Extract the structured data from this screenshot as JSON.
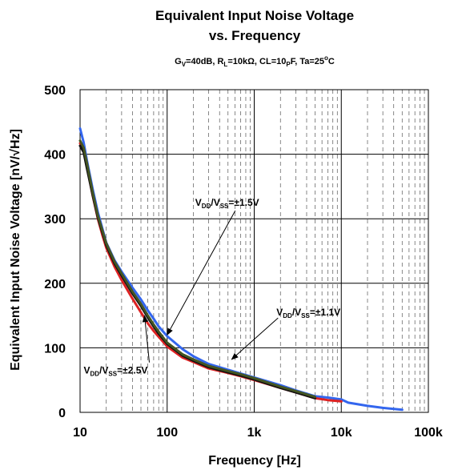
{
  "chart_data": {
    "type": "line",
    "title": [
      "Equivalent Input Noise Voltage",
      "vs. Frequency"
    ],
    "subtitle": {
      "gain_prefix": "G",
      "gain_sub": "V",
      "gain_value": "=40dB, ",
      "rl_prefix": "R",
      "rl_sub": "L",
      "rl_value": "=10kΩ, ",
      "cl_prefix": "CL=10",
      "cl_sub": "P",
      "cl_value": "F, ",
      "ta_prefix": "Ta=25",
      "ta_sup": "o",
      "ta_value": "C"
    },
    "xlabel": "Frequency [Hz]",
    "ylabel": "Equivalent Input Noise Voltage [nV/√Hz]",
    "x_scale": "log",
    "xlim": [
      10,
      100000
    ],
    "ylim": [
      0,
      500
    ],
    "x_ticks": [
      10,
      100,
      1000,
      10000,
      100000
    ],
    "x_tick_labels": [
      "10",
      "100",
      "1k",
      "10k",
      "100k"
    ],
    "y_ticks": [
      0,
      100,
      200,
      300,
      400,
      500
    ],
    "y_tick_labels": [
      "0",
      "100",
      "200",
      "300",
      "400",
      "500"
    ],
    "grid": true,
    "series": [
      {
        "color": "#3366ee",
        "x": [
          10,
          11,
          12,
          14,
          16,
          18,
          20,
          25,
          30,
          40,
          50,
          60,
          70,
          80,
          100,
          150,
          200,
          300,
          500,
          700,
          1000,
          2000,
          3000,
          5000,
          7000,
          10000,
          12000,
          20000,
          30000,
          50000
        ],
        "y": [
          440,
          418,
          390,
          345,
          310,
          285,
          263,
          235,
          218,
          193,
          175,
          158,
          145,
          133,
          118,
          98,
          87,
          75,
          66,
          60,
          54,
          42,
          34,
          25,
          23,
          20,
          15,
          10,
          7,
          4
        ]
      },
      {
        "color": "#dd2222",
        "x": [
          10,
          11,
          12,
          14,
          16,
          18,
          20,
          25,
          30,
          40,
          50,
          60,
          70,
          80,
          100,
          150,
          200,
          300,
          500,
          700,
          1000,
          2000,
          3000,
          5000,
          7000,
          10000
        ],
        "y": [
          417,
          405,
          380,
          335,
          300,
          275,
          255,
          225,
          205,
          176,
          155,
          138,
          126,
          117,
          102,
          85,
          78,
          68,
          61,
          56,
          50,
          38,
          31,
          22,
          19,
          17
        ]
      },
      {
        "color": "#111111",
        "x": [
          10,
          11,
          12,
          14,
          16,
          18,
          20,
          25,
          30,
          40,
          50,
          60,
          70,
          80,
          100,
          150,
          200,
          300,
          500,
          700,
          1000,
          2000,
          3000,
          5000
        ],
        "y": [
          413,
          403,
          378,
          336,
          302,
          279,
          259,
          230,
          212,
          184,
          165,
          147,
          133,
          122,
          106,
          88,
          80,
          70,
          62,
          57,
          51,
          38,
          31,
          22
        ]
      },
      {
        "color": "#445522",
        "x": [
          10,
          11,
          12,
          14,
          16,
          18,
          20,
          25,
          30,
          40,
          50,
          60,
          70,
          80,
          100,
          150,
          200,
          300,
          500,
          700,
          1000,
          2000,
          3000,
          5000
        ],
        "y": [
          421,
          410,
          386,
          340,
          305,
          282,
          262,
          233,
          215,
          187,
          168,
          150,
          136,
          125,
          108,
          90,
          82,
          72,
          64,
          59,
          53,
          40,
          33,
          24
        ]
      }
    ],
    "annotations": [
      {
        "main": "V",
        "sub1": "DD",
        "mid": "/V",
        "sub2": "SS",
        "tail": "=±1.5V",
        "label_x": 210,
        "label_y": 320,
        "arrow_x": 100,
        "arrow_y": 120
      },
      {
        "main": "V",
        "sub1": "DD",
        "mid": "/V",
        "sub2": "SS",
        "tail": "=±1.1V",
        "label_x": 1800,
        "label_y": 150,
        "arrow_x": 550,
        "arrow_y": 82
      },
      {
        "main": "V",
        "sub1": "DD",
        "mid": "/V",
        "sub2": "SS",
        "tail": "=±2.5V",
        "label_x": 11,
        "label_y": 60,
        "arrow_x": 55,
        "arrow_y": 150
      }
    ]
  }
}
